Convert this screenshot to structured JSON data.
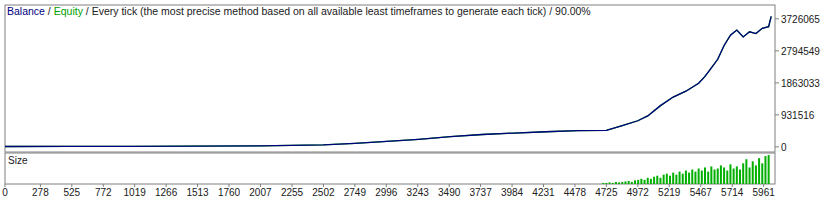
{
  "chart_data": [
    {
      "type": "line",
      "title": "Every tick (the most precise method based on all available least timeframes to generate each tick) / 90.00%",
      "x": [
        0,
        500,
        1000,
        1500,
        2000,
        2500,
        2750,
        3000,
        3250,
        3500,
        3750,
        4000,
        4250,
        4500,
        4725,
        4850,
        4972,
        5050,
        5150,
        5250,
        5350,
        5450,
        5500,
        5550,
        5600,
        5650,
        5700,
        5750,
        5800,
        5850,
        5900,
        5950,
        6000,
        6020
      ],
      "series": [
        {
          "name": "Balance",
          "color": "#00007f",
          "values": [
            10000,
            12000,
            15000,
            20000,
            30000,
            60000,
            100000,
            160000,
            220000,
            300000,
            360000,
            400000,
            440000,
            470000,
            480000,
            620000,
            760000,
            900000,
            1200000,
            1450000,
            1620000,
            1850000,
            2050000,
            2300000,
            2550000,
            2950000,
            3250000,
            3400000,
            3200000,
            3350000,
            3300000,
            3450000,
            3500000,
            3800000
          ]
        },
        {
          "name": "Equity",
          "color": "#00a000",
          "values": [
            10000,
            12000,
            15000,
            20000,
            30000,
            60000,
            100000,
            160000,
            220000,
            300000,
            360000,
            400000,
            440000,
            470000,
            480000,
            620000,
            760000,
            900000,
            1200000,
            1450000,
            1620000,
            1850000,
            2050000,
            2300000,
            2550000,
            2950000,
            3250000,
            3400000,
            3200000,
            3350000,
            3300000,
            3450000,
            3500000,
            3800000
          ]
        }
      ],
      "xlim": [
        0,
        6050
      ],
      "ylim": [
        -150000,
        4130000
      ],
      "yticks": [
        0,
        931516,
        1863033,
        2794549,
        3726065
      ],
      "tick_labels": "y",
      "grid": false
    },
    {
      "type": "bar",
      "title": "Size",
      "x": [
        4700,
        4725,
        4750,
        4775,
        4800,
        4825,
        4850,
        4875,
        4900,
        4925,
        4950,
        4975,
        5000,
        5025,
        5050,
        5075,
        5100,
        5125,
        5150,
        5175,
        5200,
        5225,
        5250,
        5275,
        5300,
        5325,
        5350,
        5375,
        5400,
        5425,
        5450,
        5475,
        5500,
        5525,
        5550,
        5575,
        5600,
        5625,
        5650,
        5675,
        5700,
        5725,
        5750,
        5775,
        5800,
        5825,
        5850,
        5875,
        5900,
        5925,
        5950,
        5975,
        6000
      ],
      "values": [
        1,
        1,
        1.5,
        1,
        2,
        1.5,
        2,
        2.5,
        3,
        2,
        3.5,
        4,
        5,
        4,
        6,
        5,
        7,
        8,
        6,
        9,
        10,
        8,
        11,
        9,
        12,
        10,
        13,
        11,
        14,
        12,
        15,
        13,
        16,
        12,
        17,
        14,
        15,
        18,
        16,
        13,
        19,
        15,
        17,
        14,
        20,
        24,
        16,
        22,
        18,
        25,
        20,
        27,
        28
      ],
      "color": "#00b000",
      "xlim": [
        0,
        6050
      ],
      "ylim": [
        0,
        30
      ],
      "xticks": [
        0,
        278,
        525,
        772,
        1019,
        1266,
        1513,
        1760,
        2007,
        2255,
        2502,
        2749,
        2996,
        3243,
        3490,
        3737,
        3984,
        4231,
        4478,
        4725,
        4972,
        5219,
        5467,
        5714,
        5961
      ],
      "tick_labels": "x",
      "grid": false
    }
  ]
}
